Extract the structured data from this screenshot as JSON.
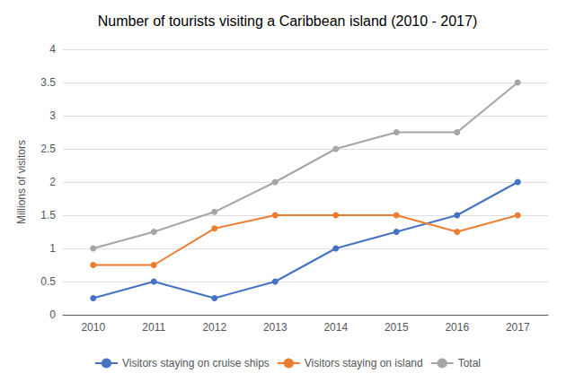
{
  "chart_data": {
    "type": "line",
    "title": "Number of tourists visiting a Caribbean island (2010 - 2017)",
    "ylabel": "Millions of visitors",
    "categories": [
      "2010",
      "2011",
      "2012",
      "2013",
      "2014",
      "2015",
      "2016",
      "2017"
    ],
    "series": [
      {
        "name": "Visitors staying on cruise ships",
        "color": "#4472c4",
        "values": [
          0.25,
          0.5,
          0.25,
          0.5,
          1.0,
          1.25,
          1.5,
          2.0
        ]
      },
      {
        "name": "Visitors staying on island",
        "color": "#ed7d31",
        "values": [
          0.75,
          0.75,
          1.3,
          1.5,
          1.5,
          1.5,
          1.25,
          1.5
        ]
      },
      {
        "name": "Total",
        "color": "#a5a5a5",
        "values": [
          1.0,
          1.25,
          1.55,
          2.0,
          2.5,
          2.75,
          2.75,
          3.5
        ]
      }
    ],
    "ylim": [
      0,
      4
    ],
    "yticks": [
      0,
      0.5,
      1,
      1.5,
      2,
      2.5,
      3,
      3.5,
      4
    ],
    "grid": true,
    "legend": "bottom",
    "marker": "circle"
  }
}
